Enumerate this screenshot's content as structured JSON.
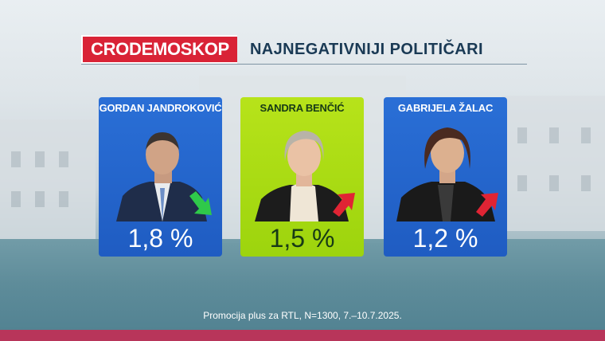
{
  "header": {
    "brand": "CRODEMOSKOP",
    "title": "NAJNEGATIVNIJI POLITIČARI"
  },
  "cards": [
    {
      "name": "GORDAN JANDROKOVIĆ",
      "value": "1,8 %",
      "trend": "down",
      "trend_color": "#2fc94a",
      "color": "#2a6fd6"
    },
    {
      "name": "SANDRA BENČIĆ",
      "value": "1,5 %",
      "trend": "up",
      "trend_color": "#e02434",
      "color": "#b7e31a"
    },
    {
      "name": "GABRIJELA ŽALAC",
      "value": "1,2 %",
      "trend": "up",
      "trend_color": "#e02434",
      "color": "#2a6fd6"
    }
  ],
  "footer": "Promocija plus za RTL, N=1300, 7.–10.7.2025."
}
